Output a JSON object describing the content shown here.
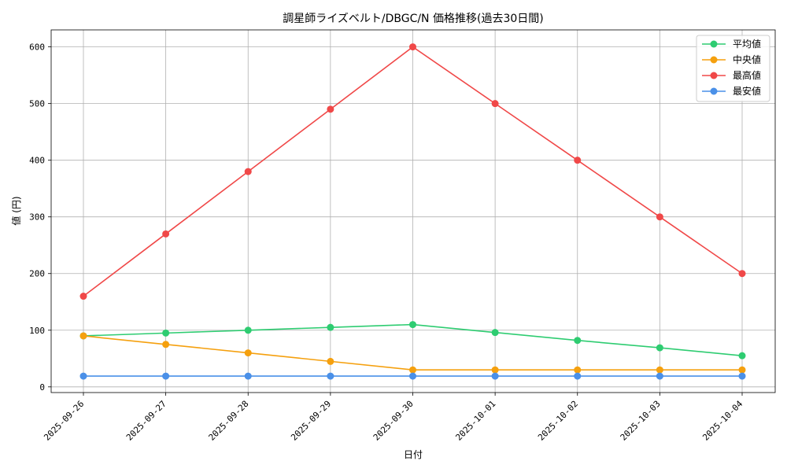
{
  "chart_data": {
    "type": "line",
    "title": "調星師ライズベルト/DBGC/N 価格推移(過去30日間)",
    "xlabel": "日付",
    "ylabel": "値 (円)",
    "categories": [
      "2025-09-26",
      "2025-09-27",
      "2025-09-28",
      "2025-09-29",
      "2025-09-30",
      "2025-10-01",
      "2025-10-02",
      "2025-10-03",
      "2025-10-04"
    ],
    "ylim": [
      -10,
      630
    ],
    "yticks": [
      0,
      100,
      200,
      300,
      400,
      500,
      600
    ],
    "grid": true,
    "legend_position": "top-right",
    "series": [
      {
        "name": "平均値",
        "color": "#2ecc71",
        "values": [
          90,
          95,
          100,
          105,
          110,
          96,
          82,
          69,
          55
        ]
      },
      {
        "name": "中央値",
        "color": "#f5a00e",
        "values": [
          90,
          75,
          60,
          45,
          30,
          30,
          30,
          30,
          30
        ]
      },
      {
        "name": "最高値",
        "color": "#f04848",
        "values": [
          160,
          270,
          380,
          490,
          600,
          500,
          400,
          300,
          200
        ]
      },
      {
        "name": "最安値",
        "color": "#4a90e8",
        "values": [
          19,
          19,
          19,
          19,
          19,
          19,
          19,
          19,
          19
        ]
      }
    ]
  }
}
